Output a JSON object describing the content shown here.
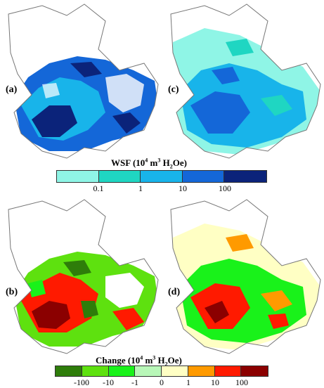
{
  "panels": [
    {
      "id": "a",
      "label": "(a)",
      "kind": "wsf"
    },
    {
      "id": "c",
      "label": "(c)",
      "kind": "wsf"
    },
    {
      "id": "b",
      "label": "(b)",
      "kind": "change"
    },
    {
      "id": "d",
      "label": "(d)",
      "kind": "change"
    }
  ],
  "wsf_legend": {
    "title_main": "WSF (10",
    "title_sup": "4",
    "title_mid": " m",
    "title_sup2": "3",
    "title_end_a": " H",
    "title_sub": "2",
    "title_end_b": "Oe)",
    "colors": [
      "#8ff5e6",
      "#1fd6c2",
      "#18b4ea",
      "#1467d8",
      "#0b237a"
    ],
    "ticks": [
      "0.1",
      "1",
      "10",
      "100"
    ]
  },
  "change_legend": {
    "title_main": "Change (10",
    "title_sup": "4",
    "title_mid": " m",
    "title_sup2": "3",
    "title_end_a": " H",
    "title_sub": "2",
    "title_end_b": "Oe)",
    "colors": [
      "#2e7d0a",
      "#5ee10f",
      "#19f21a",
      "#b8f7b8",
      "#ffffc4",
      "#ff9a00",
      "#ff1a00",
      "#8b0000"
    ],
    "ticks": [
      "-100",
      "-10",
      "-1",
      "0",
      "1",
      "10",
      "100"
    ]
  }
}
